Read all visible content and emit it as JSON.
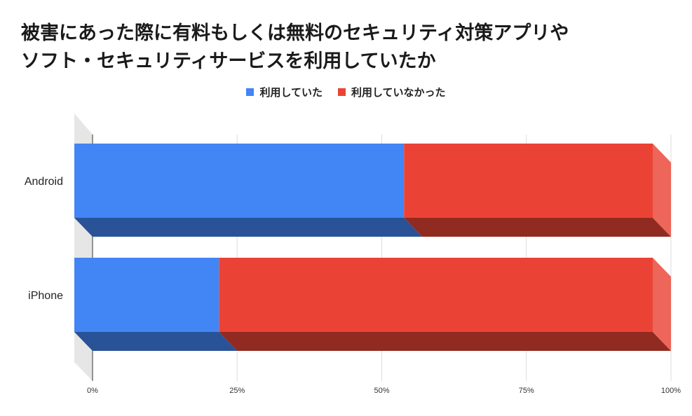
{
  "title_lines": [
    "被害にあった際に有料もしくは無料のセキュリティ対策アプリや",
    "ソフト・セキュリティサービスを利用していたか"
  ],
  "legend": [
    {
      "label": "利用していた",
      "color": "#4285f4"
    },
    {
      "label": "利用していなかった",
      "color": "#ea4335"
    }
  ],
  "chart_data": {
    "type": "bar",
    "orientation": "horizontal",
    "stacked": true,
    "style": "3d",
    "categories": [
      "Android",
      "iPhone"
    ],
    "series": [
      {
        "name": "利用していた",
        "color": "#4285f4",
        "values": [
          57,
          25
        ]
      },
      {
        "name": "利用していなかった",
        "color": "#ea4335",
        "values": [
          43,
          75
        ]
      }
    ],
    "xlim": [
      0,
      100
    ],
    "xticks": [
      "0%",
      "25%",
      "50%",
      "75%",
      "100%"
    ],
    "grid": true,
    "legend_position": "top"
  }
}
